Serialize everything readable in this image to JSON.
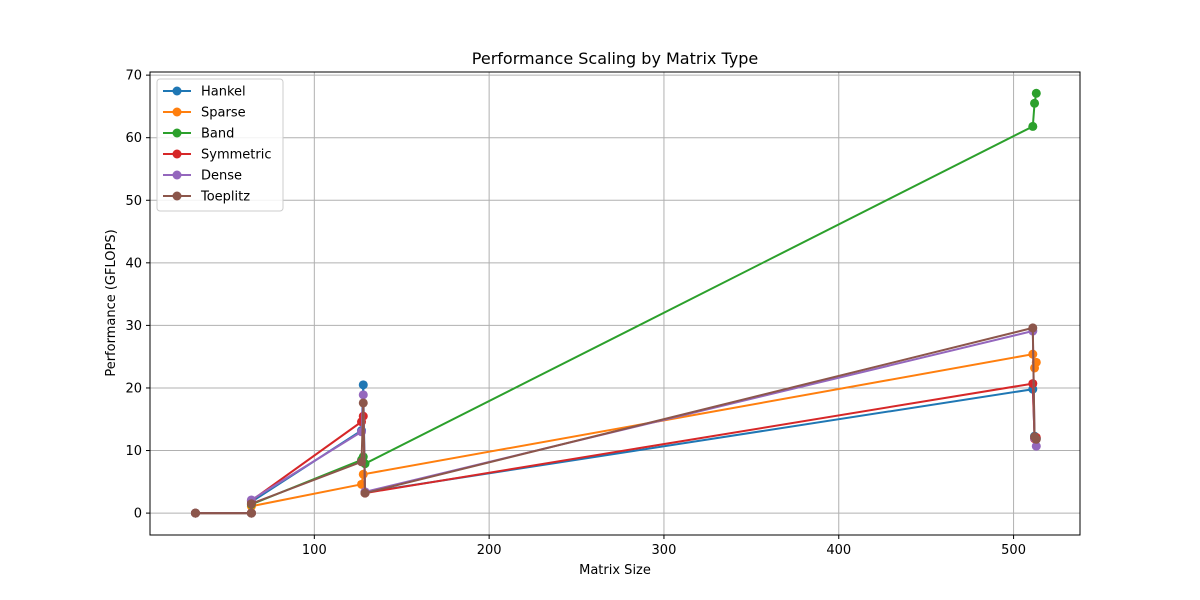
{
  "chart_data": {
    "type": "line",
    "title": "Performance Scaling by Matrix Type",
    "xlabel": "Matrix Size",
    "ylabel": "Performance (GFLOPS)",
    "xlim": [
      6,
      538
    ],
    "ylim": [
      -3.5,
      70.5
    ],
    "xticks": [
      100,
      200,
      300,
      400,
      500
    ],
    "yticks": [
      0,
      10,
      20,
      30,
      40,
      50,
      60,
      70
    ],
    "grid": true,
    "legend_position": "top-left",
    "series": [
      {
        "name": "Hankel",
        "color": "#1f77b4",
        "points": [
          [
            32,
            0.0
          ],
          [
            64,
            0.0
          ],
          [
            64,
            1.8
          ],
          [
            127,
            13.2
          ],
          [
            128,
            20.5
          ],
          [
            129,
            3.3
          ],
          [
            511,
            19.8
          ],
          [
            512,
            12.3
          ],
          [
            513,
            11.9
          ]
        ]
      },
      {
        "name": "Sparse",
        "color": "#ff7f0e",
        "points": [
          [
            32,
            0.0
          ],
          [
            64,
            0.0
          ],
          [
            64,
            1.1
          ],
          [
            127,
            4.6
          ],
          [
            128,
            6.2
          ],
          [
            511,
            25.4
          ],
          [
            512,
            23.2
          ],
          [
            513,
            24.1
          ]
        ]
      },
      {
        "name": "Band",
        "color": "#2ca02c",
        "points": [
          [
            32,
            0.0
          ],
          [
            64,
            0.0
          ],
          [
            64,
            1.4
          ],
          [
            127,
            8.5
          ],
          [
            128,
            9.0
          ],
          [
            129,
            7.9
          ],
          [
            511,
            61.8
          ],
          [
            512,
            65.5
          ],
          [
            513,
            67.1
          ]
        ]
      },
      {
        "name": "Symmetric",
        "color": "#d62728",
        "points": [
          [
            32,
            0.0
          ],
          [
            64,
            0.0
          ],
          [
            64,
            2.0
          ],
          [
            127,
            14.6
          ],
          [
            128,
            15.5
          ],
          [
            129,
            3.2
          ],
          [
            511,
            20.7
          ],
          [
            512,
            11.9
          ],
          [
            513,
            12.1
          ]
        ]
      },
      {
        "name": "Dense",
        "color": "#9467bd",
        "points": [
          [
            32,
            0.0
          ],
          [
            64,
            0.0
          ],
          [
            64,
            2.1
          ],
          [
            127,
            13.0
          ],
          [
            128,
            18.9
          ],
          [
            129,
            3.4
          ],
          [
            511,
            29.1
          ],
          [
            512,
            12.0
          ],
          [
            513,
            10.7
          ]
        ]
      },
      {
        "name": "Toeplitz",
        "color": "#8c564b",
        "points": [
          [
            32,
            0.0
          ],
          [
            64,
            0.0
          ],
          [
            64,
            1.5
          ],
          [
            127,
            8.2
          ],
          [
            128,
            17.6
          ],
          [
            129,
            3.2
          ],
          [
            511,
            29.6
          ],
          [
            512,
            12.2
          ],
          [
            513,
            11.8
          ]
        ]
      }
    ]
  }
}
